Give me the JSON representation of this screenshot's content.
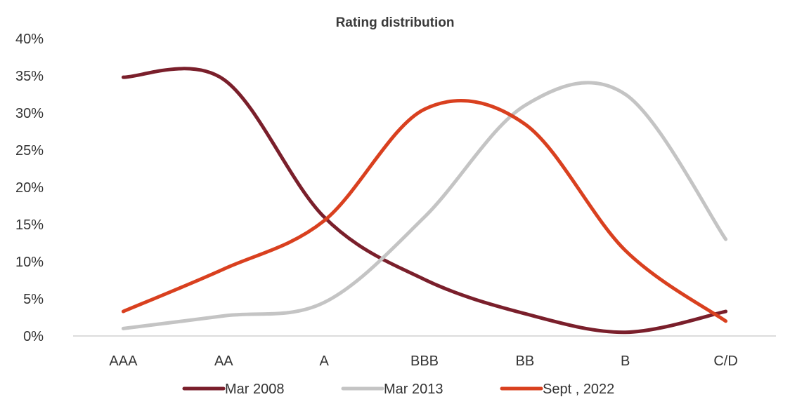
{
  "chart_data": {
    "type": "line",
    "title": "Rating distribution",
    "xlabel": "",
    "ylabel": "",
    "categories": [
      "AAA",
      "AA",
      "A",
      "BBB",
      "BB",
      "B",
      "C/D"
    ],
    "ylim": [
      0,
      40
    ],
    "yticks": [
      0,
      5,
      10,
      15,
      20,
      25,
      30,
      35,
      40
    ],
    "ytick_labels": [
      "0%",
      "5%",
      "10%",
      "15%",
      "20%",
      "25%",
      "30%",
      "35%",
      "40%"
    ],
    "grid": false,
    "smooth": true,
    "legend_position": "bottom",
    "series": [
      {
        "name": "Mar 2008",
        "color": "#7a1f2b",
        "values": [
          34.8,
          34.5,
          16.0,
          7.6,
          3.0,
          0.5,
          3.3
        ]
      },
      {
        "name": "Mar 2013",
        "color": "#c4c4c4",
        "values": [
          1.0,
          2.7,
          4.5,
          16.0,
          31.0,
          32.5,
          13.0
        ]
      },
      {
        "name": "Sept , 2022",
        "color": "#d9401f",
        "values": [
          3.3,
          9.0,
          15.5,
          30.5,
          28.5,
          11.5,
          2.0
        ]
      }
    ]
  }
}
